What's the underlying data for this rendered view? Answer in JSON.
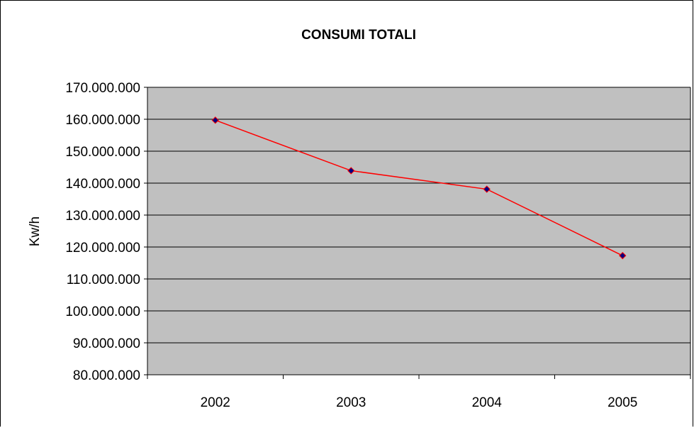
{
  "chart_data": {
    "type": "line",
    "title": "CONSUMI TOTALI",
    "xlabel": "",
    "ylabel": "Kw/h",
    "categories": [
      "2002",
      "2003",
      "2004",
      "2005"
    ],
    "series": [
      {
        "values": [
          159700000,
          143900000,
          138100000,
          117300000
        ]
      }
    ],
    "ylim": [
      80000000,
      170000000
    ],
    "yticks": [
      80000000,
      90000000,
      100000000,
      110000000,
      120000000,
      130000000,
      140000000,
      150000000,
      160000000,
      170000000
    ],
    "ytick_labels": [
      "80.000.000",
      "90.000.000",
      "100.000.000",
      "110.000.000",
      "120.000.000",
      "130.000.000",
      "140.000.000",
      "150.000.000",
      "160.000.000",
      "170.000.000"
    ],
    "grid": true,
    "legend": "none",
    "colors": {
      "plot_background": "#c0c0c0",
      "line": "#ff0000",
      "marker_fill": "#000080",
      "gridline": "#000000"
    }
  }
}
